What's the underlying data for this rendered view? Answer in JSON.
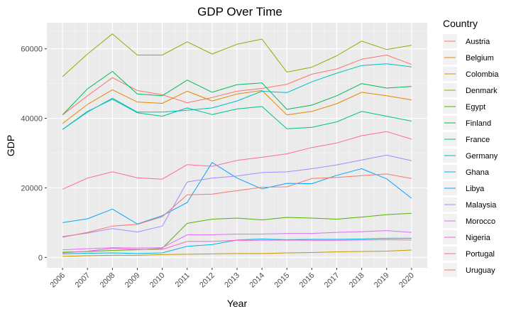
{
  "chart_data": {
    "type": "line",
    "title": "GDP Over Time",
    "xlabel": "Year",
    "ylabel": "GDP",
    "x": [
      2006,
      2007,
      2008,
      2009,
      2010,
      2011,
      2012,
      2013,
      2014,
      2015,
      2016,
      2017,
      2018,
      2019,
      2020
    ],
    "ylim": [
      -3000,
      67500
    ],
    "yticks": [
      0,
      20000,
      40000,
      60000
    ],
    "ytick_labels": [
      "0",
      "20000",
      "40000",
      "60000"
    ],
    "grid": true,
    "legend_title": "Country",
    "legend_position": "right",
    "series": [
      {
        "name": "Austria",
        "color": "#F8766D",
        "values": [
          41000,
          46500,
          51700,
          48000,
          46800,
          44500,
          46000,
          47800,
          48600,
          49800,
          52700,
          54200,
          57000,
          58200,
          55500
        ]
      },
      {
        "name": "Belgium",
        "color": "#E38900",
        "values": [
          38500,
          44000,
          48200,
          44700,
          44300,
          47800,
          45000,
          47000,
          48000,
          41000,
          42000,
          44200,
          47500,
          46500,
          45300
        ]
      },
      {
        "name": "Colombia",
        "color": "#C49A00",
        "values": [
          300,
          500,
          600,
          600,
          800,
          900,
          1000,
          1100,
          1100,
          1300,
          1400,
          1600,
          1700,
          1800,
          2100
        ]
      },
      {
        "name": "Denmark",
        "color": "#99A800",
        "values": [
          52000,
          58500,
          64300,
          58200,
          58200,
          62000,
          58500,
          61300,
          62800,
          53300,
          54700,
          58000,
          62200,
          59800,
          61000
        ]
      },
      {
        "name": "Egypt",
        "color": "#53B400",
        "values": [
          1500,
          1700,
          2000,
          2200,
          2600,
          9800,
          11000,
          11300,
          10800,
          11500,
          11300,
          11000,
          11600,
          12300,
          12700
        ]
      },
      {
        "name": "Finland",
        "color": "#00BC56",
        "values": [
          41000,
          48500,
          53500,
          47000,
          46500,
          51000,
          47500,
          49700,
          50200,
          42600,
          43800,
          46500,
          50000,
          48700,
          49200
        ]
      },
      {
        "name": "France",
        "color": "#00C094",
        "values": [
          36800,
          42000,
          45500,
          41600,
          40600,
          43000,
          41100,
          42700,
          43400,
          37000,
          37400,
          39000,
          42000,
          40600,
          39200
        ]
      },
      {
        "name": "Germany",
        "color": "#00BFC4",
        "values": [
          36800,
          41800,
          45800,
          41800,
          41800,
          42300,
          43000,
          45000,
          47800,
          47400,
          50500,
          53000,
          55200,
          55700,
          54800
        ]
      },
      {
        "name": "Ghana",
        "color": "#00B6EB",
        "values": [
          1000,
          1200,
          1300,
          1100,
          1300,
          3200,
          3700,
          5000,
          5300,
          5100,
          5200,
          5200,
          5300,
          5500,
          5500
        ]
      },
      {
        "name": "Libya",
        "color": "#06A4FF",
        "values": [
          10000,
          11100,
          13900,
          9600,
          12000,
          15800,
          27300,
          22800,
          19700,
          21300,
          21200,
          23600,
          25500,
          22600,
          17000
        ]
      },
      {
        "name": "Malaysia",
        "color": "#A58AFF",
        "values": [
          6000,
          7000,
          8300,
          7300,
          9000,
          21700,
          22800,
          23400,
          24400,
          24600,
          25500,
          26600,
          28000,
          29400,
          27800
        ]
      },
      {
        "name": "Morocco",
        "color": "#DF70F8",
        "values": [
          2200,
          2500,
          2800,
          2700,
          2800,
          6500,
          6500,
          6700,
          6700,
          6900,
          6900,
          7200,
          7400,
          7700,
          7200
        ]
      },
      {
        "name": "Nigeria",
        "color": "#FB61D7",
        "values": [
          1300,
          1800,
          2600,
          2300,
          2300,
          4600,
          4600,
          4900,
          4900,
          5000,
          4900,
          4900,
          5000,
          5100,
          5000
        ]
      },
      {
        "name": "Portugal",
        "color": "#FF66A8",
        "values": [
          19600,
          22800,
          24600,
          22900,
          22500,
          26700,
          26200,
          27900,
          28800,
          29800,
          31600,
          32900,
          35000,
          36200,
          34000
        ]
      },
      {
        "name": "Uruguay",
        "color": "#F8766D",
        "values": [
          5800,
          7200,
          9000,
          9500,
          11700,
          18000,
          18200,
          19200,
          20200,
          20300,
          22700,
          23000,
          23500,
          24000,
          22700
        ]
      }
    ]
  }
}
